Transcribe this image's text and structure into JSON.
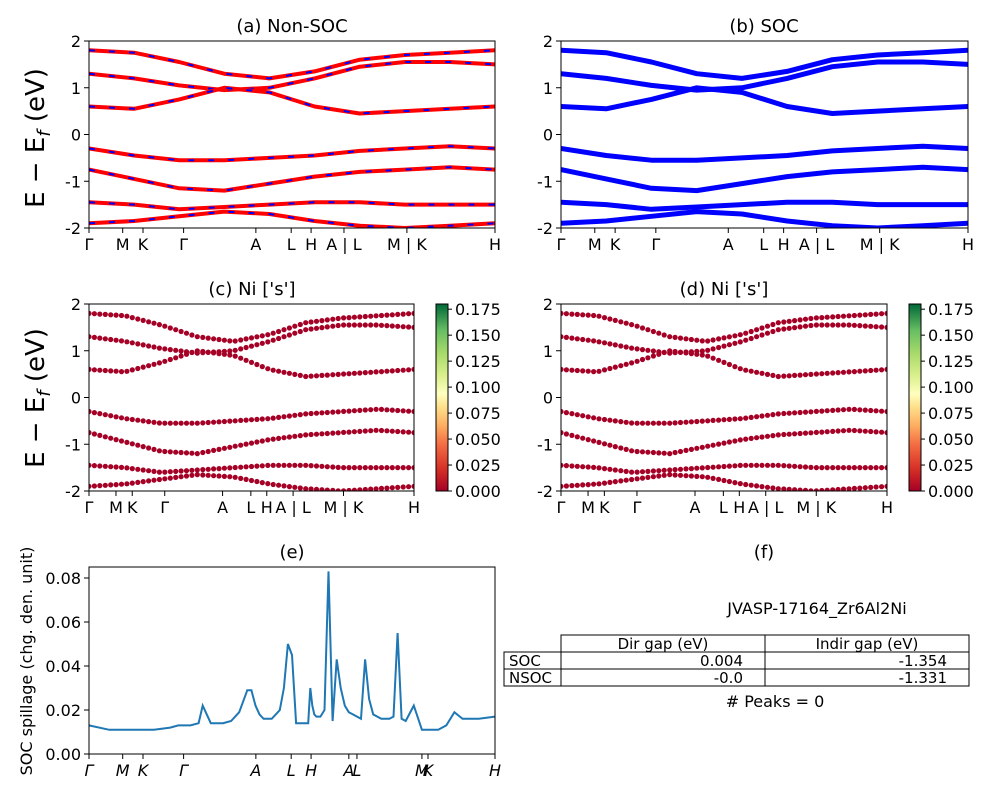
{
  "chart_data": [
    {
      "id": "a",
      "type": "line",
      "title": "(a) Non-SOC",
      "ylabel": "E − E_f (eV)",
      "ylim": [
        -2,
        2
      ],
      "yticks": [
        -2,
        -1,
        0,
        1,
        2
      ],
      "xtick_labels": [
        "Γ",
        "M",
        "K",
        "Γ",
        "A",
        "L",
        "H",
        "A | L",
        "M | K",
        "H"
      ],
      "series": [
        {
          "color": "#ff0000",
          "bands": [
            [
              1.8,
              1.75,
              1.55,
              1.3,
              1.2,
              1.35,
              1.6,
              1.7,
              1.75,
              1.8
            ],
            [
              1.3,
              1.2,
              1.05,
              0.95,
              1.0,
              1.2,
              1.45,
              1.55,
              1.55,
              1.5
            ],
            [
              0.6,
              0.55,
              0.75,
              1.0,
              0.9,
              0.6,
              0.45,
              0.5,
              0.55,
              0.6
            ],
            [
              -0.3,
              -0.45,
              -0.55,
              -0.55,
              -0.5,
              -0.45,
              -0.35,
              -0.3,
              -0.25,
              -0.3
            ],
            [
              -0.75,
              -0.95,
              -1.15,
              -1.2,
              -1.05,
              -0.9,
              -0.8,
              -0.75,
              -0.7,
              -0.75
            ],
            [
              -1.45,
              -1.5,
              -1.6,
              -1.55,
              -1.5,
              -1.45,
              -1.45,
              -1.5,
              -1.5,
              -1.5
            ],
            [
              -1.9,
              -1.85,
              -1.75,
              -1.65,
              -1.7,
              -1.85,
              -1.95,
              -2.0,
              -1.95,
              -1.9
            ]
          ]
        }
      ]
    },
    {
      "id": "b",
      "type": "line",
      "title": "(b) SOC",
      "ylim": [
        -2,
        2
      ],
      "yticks": [
        -2,
        -1,
        0,
        1,
        2
      ],
      "xtick_labels": [
        "Γ",
        "M",
        "K",
        "Γ",
        "A",
        "L",
        "H",
        "A | L",
        "M | K",
        "H"
      ],
      "series": [
        {
          "color": "#0000ff",
          "bands": [
            [
              1.8,
              1.75,
              1.55,
              1.3,
              1.2,
              1.35,
              1.6,
              1.7,
              1.75,
              1.8
            ],
            [
              1.3,
              1.2,
              1.05,
              0.95,
              1.0,
              1.2,
              1.45,
              1.55,
              1.55,
              1.5
            ],
            [
              0.6,
              0.55,
              0.75,
              1.0,
              0.9,
              0.6,
              0.45,
              0.5,
              0.55,
              0.6
            ],
            [
              -0.3,
              -0.45,
              -0.55,
              -0.55,
              -0.5,
              -0.45,
              -0.35,
              -0.3,
              -0.25,
              -0.3
            ],
            [
              -0.75,
              -0.95,
              -1.15,
              -1.2,
              -1.05,
              -0.9,
              -0.8,
              -0.75,
              -0.7,
              -0.75
            ],
            [
              -1.45,
              -1.5,
              -1.6,
              -1.55,
              -1.5,
              -1.45,
              -1.45,
              -1.5,
              -1.5,
              -1.5
            ],
            [
              -1.9,
              -1.85,
              -1.75,
              -1.65,
              -1.7,
              -1.85,
              -1.95,
              -2.0,
              -1.95,
              -1.9
            ]
          ]
        }
      ]
    },
    {
      "id": "c",
      "type": "scatter",
      "title": "(c)  Ni ['s']",
      "ylabel": "E − E_f (eV)",
      "ylim": [
        -2,
        2
      ],
      "yticks": [
        -2,
        -1,
        0,
        1,
        2
      ],
      "xtick_labels": [
        "Γ",
        "M",
        "K",
        "Γ",
        "A",
        "L",
        "H",
        "A | L",
        "M | K",
        "H"
      ],
      "colorbar": {
        "min": 0.0,
        "max": 0.18,
        "ticks": [
          "0.000",
          "0.025",
          "0.050",
          "0.075",
          "0.100",
          "0.125",
          "0.150",
          "0.175"
        ]
      },
      "point_color": "#a50026"
    },
    {
      "id": "d",
      "type": "scatter",
      "title": "(d) Ni ['s']",
      "ylim": [
        -2,
        2
      ],
      "yticks": [
        -2,
        -1,
        0,
        1,
        2
      ],
      "xtick_labels": [
        "Γ",
        "M",
        "K",
        "Γ",
        "A",
        "L",
        "H",
        "A | L",
        "M | K",
        "H"
      ],
      "colorbar": {
        "min": 0.0,
        "max": 0.18,
        "ticks": [
          "0.000",
          "0.025",
          "0.050",
          "0.075",
          "0.100",
          "0.125",
          "0.150",
          "0.175"
        ]
      },
      "point_color": "#a50026"
    },
    {
      "id": "e",
      "type": "line",
      "title": "(e)",
      "ylabel": "SOC spillage (chg. den. unit)",
      "ylim": [
        0,
        0.085
      ],
      "yticks": [
        "0.00",
        "0.02",
        "0.04",
        "0.06",
        "0.08"
      ],
      "xtick_labels": [
        "Γ",
        "M",
        "K",
        "Γ",
        "A",
        "L",
        "H",
        "A",
        "L",
        "M",
        "K",
        "H"
      ],
      "x": [
        0.0,
        0.05,
        0.08,
        0.12,
        0.16,
        0.2,
        0.22,
        0.25,
        0.27,
        0.28,
        0.3,
        0.33,
        0.35,
        0.36,
        0.37,
        0.39,
        0.4,
        0.41,
        0.42,
        0.43,
        0.44,
        0.45,
        0.46,
        0.47,
        0.48,
        0.49,
        0.5,
        0.51,
        0.52,
        0.53,
        0.54,
        0.545,
        0.55,
        0.555,
        0.56,
        0.57,
        0.58,
        0.59,
        0.6,
        0.61,
        0.62,
        0.63,
        0.64,
        0.65,
        0.66,
        0.67,
        0.68,
        0.69,
        0.7,
        0.71,
        0.72,
        0.73,
        0.74,
        0.75,
        0.76,
        0.77,
        0.78,
        0.8,
        0.82,
        0.84,
        0.86,
        0.88,
        0.9,
        0.92,
        0.94,
        0.96,
        1.0
      ],
      "y": [
        0.013,
        0.011,
        0.011,
        0.011,
        0.011,
        0.012,
        0.013,
        0.013,
        0.014,
        0.022,
        0.014,
        0.014,
        0.015,
        0.017,
        0.019,
        0.029,
        0.029,
        0.022,
        0.018,
        0.016,
        0.016,
        0.016,
        0.018,
        0.02,
        0.03,
        0.05,
        0.045,
        0.014,
        0.014,
        0.014,
        0.014,
        0.03,
        0.022,
        0.018,
        0.017,
        0.017,
        0.02,
        0.083,
        0.015,
        0.043,
        0.03,
        0.022,
        0.019,
        0.018,
        0.017,
        0.016,
        0.043,
        0.025,
        0.018,
        0.017,
        0.016,
        0.016,
        0.016,
        0.017,
        0.055,
        0.016,
        0.015,
        0.022,
        0.011,
        0.011,
        0.011,
        0.013,
        0.019,
        0.016,
        0.016,
        0.016,
        0.017
      ],
      "color": "#1f77b4"
    }
  ],
  "panel_f": {
    "label": "(f)",
    "material": "JVASP-17164_Zr6Al2Ni",
    "table": {
      "headers": [
        "Dir gap (eV)",
        "Indir gap (eV)"
      ],
      "rows": [
        {
          "label": "SOC",
          "dir": "0.004",
          "indir": "-1.354"
        },
        {
          "label": "NSOC",
          "dir": "-0.0",
          "indir": "-1.331"
        }
      ]
    },
    "peaks_text": "# Peaks = 0"
  }
}
